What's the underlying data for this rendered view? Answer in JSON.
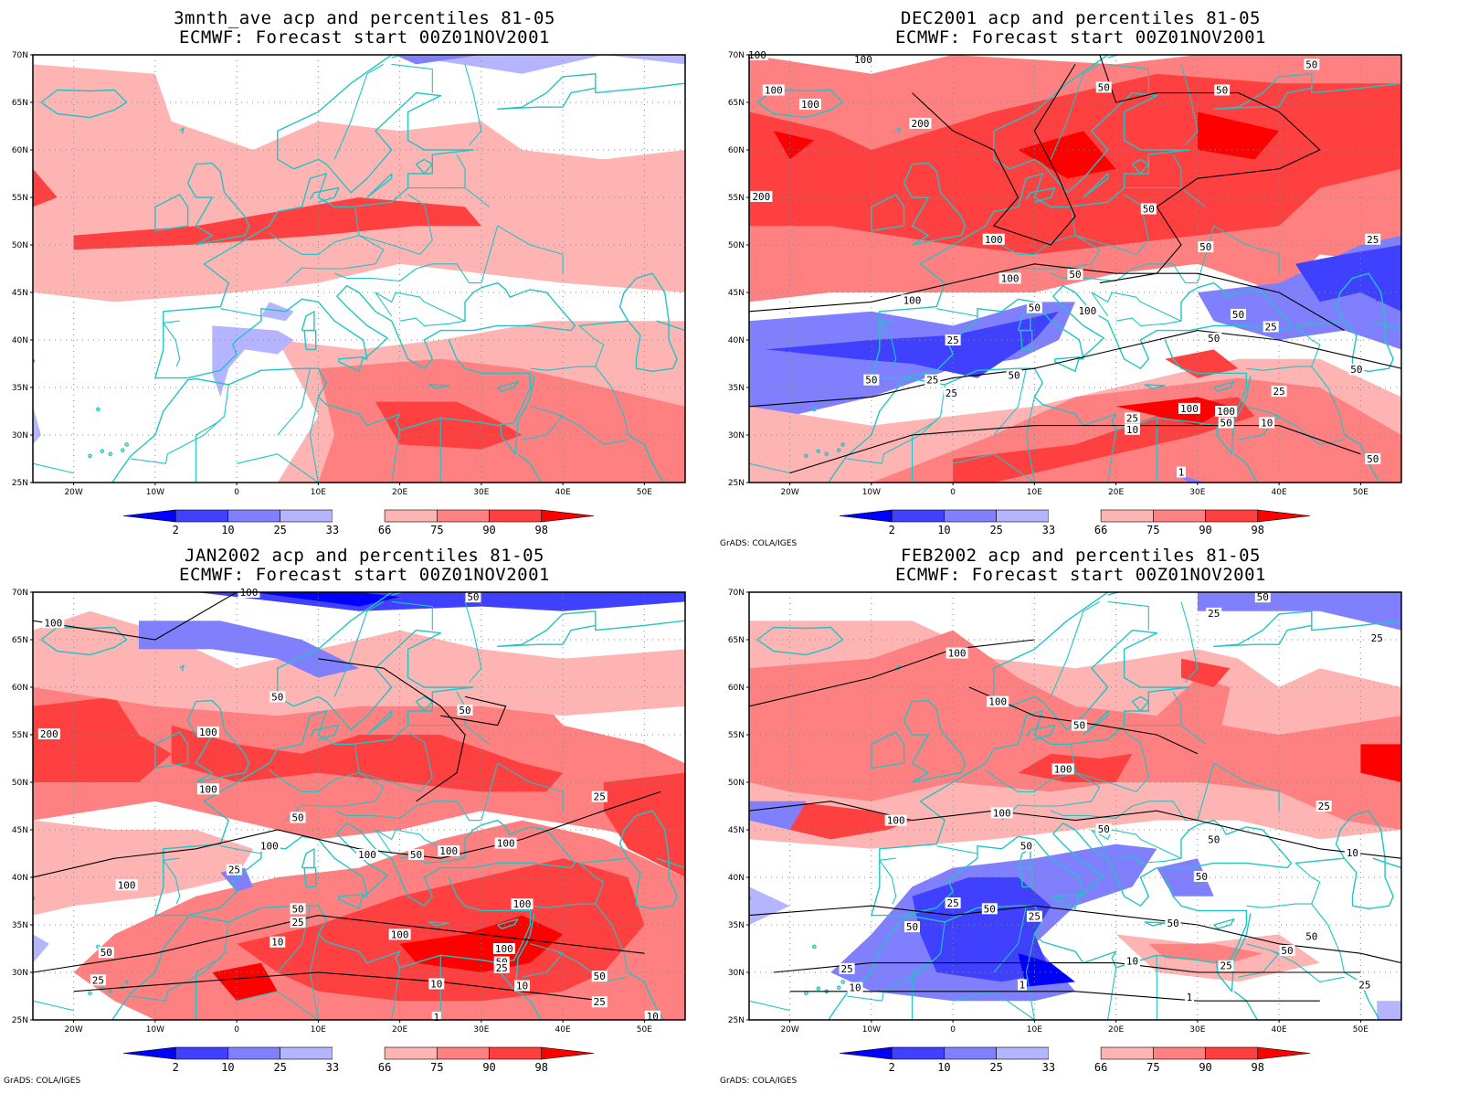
{
  "colors": {
    "coast": "#20c4c4",
    "contour": "#000000",
    "bins": [
      "#0000ff",
      "#4040ff",
      "#8080ff",
      "#b4b4ff",
      "#ffffff",
      "#ffb4b4",
      "#ff8080",
      "#ff4040",
      "#ff0000"
    ]
  },
  "axes": {
    "lat_labels": [
      "70N",
      "65N",
      "60N",
      "55N",
      "50N",
      "45N",
      "40N",
      "35N",
      "30N",
      "25N"
    ],
    "lon_labels": [
      "20W",
      "10W",
      "0",
      "10E",
      "20E",
      "30E",
      "40E",
      "50E"
    ]
  },
  "colorbar": {
    "labels": [
      "2",
      "10",
      "25",
      "33",
      "66",
      "75",
      "90",
      "98"
    ]
  },
  "credit": "GrADS: COLA/IGES",
  "panels": [
    {
      "title1": "3mnth_ave acp and percentiles 81-05",
      "title2": "ECMWF: Forecast start 00Z01NOV2001",
      "show_credit": false,
      "contour_labels": []
    },
    {
      "title1": "DEC2001 acp and percentiles 81-05",
      "title2": "ECMWF: Forecast start 00Z01NOV2001",
      "show_credit": true,
      "contour_labels": [
        {
          "text": "100",
          "lon": -24,
          "lat": 70
        },
        {
          "text": "100",
          "lon": -11,
          "lat": 69.5
        },
        {
          "text": "100",
          "lon": -22,
          "lat": 66.3
        },
        {
          "text": "100",
          "lon": -17.5,
          "lat": 64.8
        },
        {
          "text": "200",
          "lon": -4,
          "lat": 62.8
        },
        {
          "text": "200",
          "lon": -23.5,
          "lat": 55.1
        },
        {
          "text": "50",
          "lon": 33,
          "lat": 66.3
        },
        {
          "text": "50",
          "lon": 44,
          "lat": 69
        },
        {
          "text": "50",
          "lon": 18.5,
          "lat": 66.6
        },
        {
          "text": "50",
          "lon": 24,
          "lat": 53.8
        },
        {
          "text": "100",
          "lon": 5,
          "lat": 50.6
        },
        {
          "text": "50",
          "lon": 31,
          "lat": 49.8
        },
        {
          "text": "50",
          "lon": 15,
          "lat": 46.9
        },
        {
          "text": "100",
          "lon": 7,
          "lat": 46.5
        },
        {
          "text": "100",
          "lon": -5,
          "lat": 44.2
        },
        {
          "text": "50",
          "lon": 10,
          "lat": 43.4
        },
        {
          "text": "100",
          "lon": 16.5,
          "lat": 43.1
        },
        {
          "text": "25",
          "lon": 51.5,
          "lat": 50.6
        },
        {
          "text": "50",
          "lon": 35,
          "lat": 42.7
        },
        {
          "text": "25",
          "lon": 39,
          "lat": 41.4
        },
        {
          "text": "50",
          "lon": 32,
          "lat": 40.2
        },
        {
          "text": "25",
          "lon": 0,
          "lat": 40
        },
        {
          "text": "50",
          "lon": -10,
          "lat": 35.8
        },
        {
          "text": "25",
          "lon": -2.5,
          "lat": 35.8
        },
        {
          "text": "25",
          "lon": -0.2,
          "lat": 34.4
        },
        {
          "text": "50",
          "lon": 7.5,
          "lat": 36.3
        },
        {
          "text": "50",
          "lon": 49.5,
          "lat": 36.9
        },
        {
          "text": "25",
          "lon": 40,
          "lat": 34.6
        },
        {
          "text": "100",
          "lon": 29,
          "lat": 32.8
        },
        {
          "text": "100",
          "lon": 33.5,
          "lat": 32.5
        },
        {
          "text": "50",
          "lon": 33.5,
          "lat": 31.3
        },
        {
          "text": "25",
          "lon": 22,
          "lat": 31.8
        },
        {
          "text": "10",
          "lon": 22,
          "lat": 30.6
        },
        {
          "text": "10",
          "lon": 38.5,
          "lat": 31.3
        },
        {
          "text": "50",
          "lon": 51.5,
          "lat": 27.5
        },
        {
          "text": "1",
          "lon": 28,
          "lat": 26.1
        }
      ]
    },
    {
      "title1": "JAN2002 acp and percentiles 81-05",
      "title2": "ECMWF: Forecast start 00Z01NOV2001",
      "show_credit": true,
      "contour_labels": [
        {
          "text": "100",
          "lon": 1.5,
          "lat": 70
        },
        {
          "text": "50",
          "lon": 29,
          "lat": 69.5
        },
        {
          "text": "100",
          "lon": -22.5,
          "lat": 66.8
        },
        {
          "text": "50",
          "lon": 5,
          "lat": 59
        },
        {
          "text": "50",
          "lon": 28,
          "lat": 57.6
        },
        {
          "text": "200",
          "lon": -23,
          "lat": 55.1
        },
        {
          "text": "100",
          "lon": -3.5,
          "lat": 55.3
        },
        {
          "text": "100",
          "lon": -3.5,
          "lat": 49.3
        },
        {
          "text": "50",
          "lon": 7.5,
          "lat": 46.3
        },
        {
          "text": "100",
          "lon": 4,
          "lat": 43.3
        },
        {
          "text": "100",
          "lon": 16,
          "lat": 42.4
        },
        {
          "text": "50",
          "lon": 22,
          "lat": 42.4
        },
        {
          "text": "100",
          "lon": 26,
          "lat": 42.8
        },
        {
          "text": "100",
          "lon": 33,
          "lat": 43.6
        },
        {
          "text": "25",
          "lon": 44.5,
          "lat": 48.5
        },
        {
          "text": "25",
          "lon": -0.3,
          "lat": 40.8
        },
        {
          "text": "100",
          "lon": -13.5,
          "lat": 39.2
        },
        {
          "text": "50",
          "lon": 7.5,
          "lat": 36.7
        },
        {
          "text": "25",
          "lon": 7.5,
          "lat": 35.3
        },
        {
          "text": "10",
          "lon": 5,
          "lat": 33.2
        },
        {
          "text": "100",
          "lon": 35,
          "lat": 37.2
        },
        {
          "text": "100",
          "lon": 20,
          "lat": 34
        },
        {
          "text": "100",
          "lon": 32.8,
          "lat": 32.5
        },
        {
          "text": "50",
          "lon": 32.5,
          "lat": 31.1
        },
        {
          "text": "25",
          "lon": 32.5,
          "lat": 30.5
        },
        {
          "text": "50",
          "lon": -16,
          "lat": 32.1
        },
        {
          "text": "25",
          "lon": -17,
          "lat": 29.2
        },
        {
          "text": "10",
          "lon": 24.5,
          "lat": 28.8
        },
        {
          "text": "10",
          "lon": 35,
          "lat": 28.6
        },
        {
          "text": "50",
          "lon": 44.5,
          "lat": 29.6
        },
        {
          "text": "25",
          "lon": 44.5,
          "lat": 26.9
        },
        {
          "text": "10",
          "lon": 51,
          "lat": 25.4
        },
        {
          "text": "1",
          "lon": 24.5,
          "lat": 25.3
        }
      ]
    },
    {
      "title1": "FEB2002 acp and percentiles 81-05",
      "title2": "ECMWF: Forecast start 00Z01NOV2001",
      "show_credit": true,
      "contour_labels": [
        {
          "text": "50",
          "lon": 38,
          "lat": 69.5
        },
        {
          "text": "25",
          "lon": 32,
          "lat": 67.8
        },
        {
          "text": "25",
          "lon": 52,
          "lat": 65.2
        },
        {
          "text": "100",
          "lon": 0.5,
          "lat": 63.6
        },
        {
          "text": "100",
          "lon": 5.5,
          "lat": 58.5
        },
        {
          "text": "50",
          "lon": 15.5,
          "lat": 56
        },
        {
          "text": "100",
          "lon": 13.5,
          "lat": 51.4
        },
        {
          "text": "100",
          "lon": 6,
          "lat": 46.8
        },
        {
          "text": "25",
          "lon": 45.5,
          "lat": 47.5
        },
        {
          "text": "100",
          "lon": -7,
          "lat": 46
        },
        {
          "text": "50",
          "lon": 18.5,
          "lat": 45.1
        },
        {
          "text": "50",
          "lon": 32,
          "lat": 44
        },
        {
          "text": "50",
          "lon": 9,
          "lat": 43.3
        },
        {
          "text": "10",
          "lon": 49,
          "lat": 42.6
        },
        {
          "text": "50",
          "lon": 30.5,
          "lat": 40.1
        },
        {
          "text": "25",
          "lon": 0,
          "lat": 37.3
        },
        {
          "text": "50",
          "lon": 4.5,
          "lat": 36.7
        },
        {
          "text": "25",
          "lon": 10,
          "lat": 35.9
        },
        {
          "text": "50",
          "lon": -5,
          "lat": 34.8
        },
        {
          "text": "50",
          "lon": 27,
          "lat": 35.2
        },
        {
          "text": "50",
          "lon": 44,
          "lat": 33.8
        },
        {
          "text": "50",
          "lon": 41,
          "lat": 32.3
        },
        {
          "text": "10",
          "lon": 22,
          "lat": 31.2
        },
        {
          "text": "25",
          "lon": 33.5,
          "lat": 30.7
        },
        {
          "text": "25",
          "lon": -13,
          "lat": 30.4
        },
        {
          "text": "10",
          "lon": -12,
          "lat": 28.4
        },
        {
          "text": "1",
          "lon": 8.5,
          "lat": 28.7
        },
        {
          "text": "1",
          "lon": 29,
          "lat": 27.4
        },
        {
          "text": "25",
          "lon": 50.5,
          "lat": 28.7
        }
      ]
    }
  ]
}
